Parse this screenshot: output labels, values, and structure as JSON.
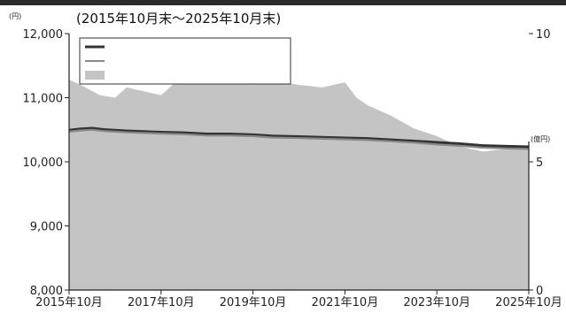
{
  "chart_data": {
    "type": "line+area",
    "title": "(2015年10月末～2025年10月末)",
    "unit_left": "(円)",
    "unit_right": "(億円)",
    "x_labels": [
      "2015年10月",
      "2017年10月",
      "2019年10月",
      "2021年10月",
      "2023年10月",
      "2025年10月"
    ],
    "x_range": [
      "2015-10",
      "2025-10"
    ],
    "y_left_ticks": [
      "8,000",
      "9,000",
      "10,000",
      "11,000",
      "12,000"
    ],
    "y_left_range": [
      8000,
      12000
    ],
    "y_right_ticks": [
      "0",
      "5",
      "10"
    ],
    "y_right_range": [
      0,
      10
    ],
    "legend": [
      {
        "label": "",
        "color": "#333333",
        "style": "line"
      },
      {
        "label": "",
        "color": "#888888",
        "style": "line"
      },
      {
        "label": "",
        "color": "#c4c4c4",
        "style": "area"
      }
    ],
    "series": [
      {
        "name": "",
        "axis": "left",
        "color": "#333333",
        "points": [
          [
            "2015-10",
            10490
          ],
          [
            "2016-01",
            10510
          ],
          [
            "2016-04",
            10520
          ],
          [
            "2016-07",
            10500
          ],
          [
            "2017-01",
            10480
          ],
          [
            "2017-10",
            10460
          ],
          [
            "2018-04",
            10450
          ],
          [
            "2018-10",
            10430
          ],
          [
            "2019-04",
            10430
          ],
          [
            "2019-10",
            10420
          ],
          [
            "2020-03",
            10400
          ],
          [
            "2020-10",
            10390
          ],
          [
            "2021-04",
            10380
          ],
          [
            "2021-10",
            10370
          ],
          [
            "2022-04",
            10360
          ],
          [
            "2022-10",
            10340
          ],
          [
            "2023-04",
            10320
          ],
          [
            "2023-10",
            10300
          ],
          [
            "2024-04",
            10280
          ],
          [
            "2024-10",
            10250
          ],
          [
            "2025-04",
            10240
          ],
          [
            "2025-10",
            10230
          ]
        ]
      },
      {
        "name": "",
        "axis": "left",
        "color": "#888888",
        "points": [
          [
            "2015-10",
            10470
          ],
          [
            "2016-01",
            10490
          ],
          [
            "2016-04",
            10500
          ],
          [
            "2016-07",
            10480
          ],
          [
            "2017-01",
            10460
          ],
          [
            "2017-10",
            10440
          ],
          [
            "2018-04",
            10430
          ],
          [
            "2018-10",
            10410
          ],
          [
            "2019-04",
            10410
          ],
          [
            "2019-10",
            10400
          ],
          [
            "2020-03",
            10380
          ],
          [
            "2020-10",
            10370
          ],
          [
            "2021-04",
            10360
          ],
          [
            "2021-10",
            10350
          ],
          [
            "2022-04",
            10340
          ],
          [
            "2022-10",
            10320
          ],
          [
            "2023-04",
            10300
          ],
          [
            "2023-10",
            10270
          ],
          [
            "2024-04",
            10250
          ],
          [
            "2024-10",
            10220
          ],
          [
            "2025-04",
            10210
          ],
          [
            "2025-10",
            10200
          ]
        ]
      },
      {
        "name": "",
        "axis": "right",
        "color": "#c4c4c4",
        "points": [
          [
            "2015-10",
            8.2
          ],
          [
            "2016-01",
            8.0
          ],
          [
            "2016-06",
            7.6
          ],
          [
            "2016-10",
            7.5
          ],
          [
            "2017-01",
            7.9
          ],
          [
            "2017-04",
            7.8
          ],
          [
            "2017-10",
            7.6
          ],
          [
            "2018-01",
            8.0
          ],
          [
            "2018-04",
            8.3
          ],
          [
            "2018-10",
            8.4
          ],
          [
            "2019-04",
            8.5
          ],
          [
            "2019-08",
            8.7
          ],
          [
            "2019-10",
            8.0
          ],
          [
            "2020-01",
            8.3
          ],
          [
            "2020-06",
            8.1
          ],
          [
            "2020-10",
            8.0
          ],
          [
            "2021-04",
            7.9
          ],
          [
            "2021-10",
            8.1
          ],
          [
            "2022-01",
            7.5
          ],
          [
            "2022-04",
            7.2
          ],
          [
            "2022-10",
            6.8
          ],
          [
            "2023-04",
            6.3
          ],
          [
            "2023-10",
            6.0
          ],
          [
            "2024-04",
            5.6
          ],
          [
            "2024-10",
            5.4
          ],
          [
            "2025-04",
            5.5
          ],
          [
            "2025-10",
            5.6
          ]
        ]
      }
    ],
    "grid": false,
    "legend_position": "top-left"
  }
}
